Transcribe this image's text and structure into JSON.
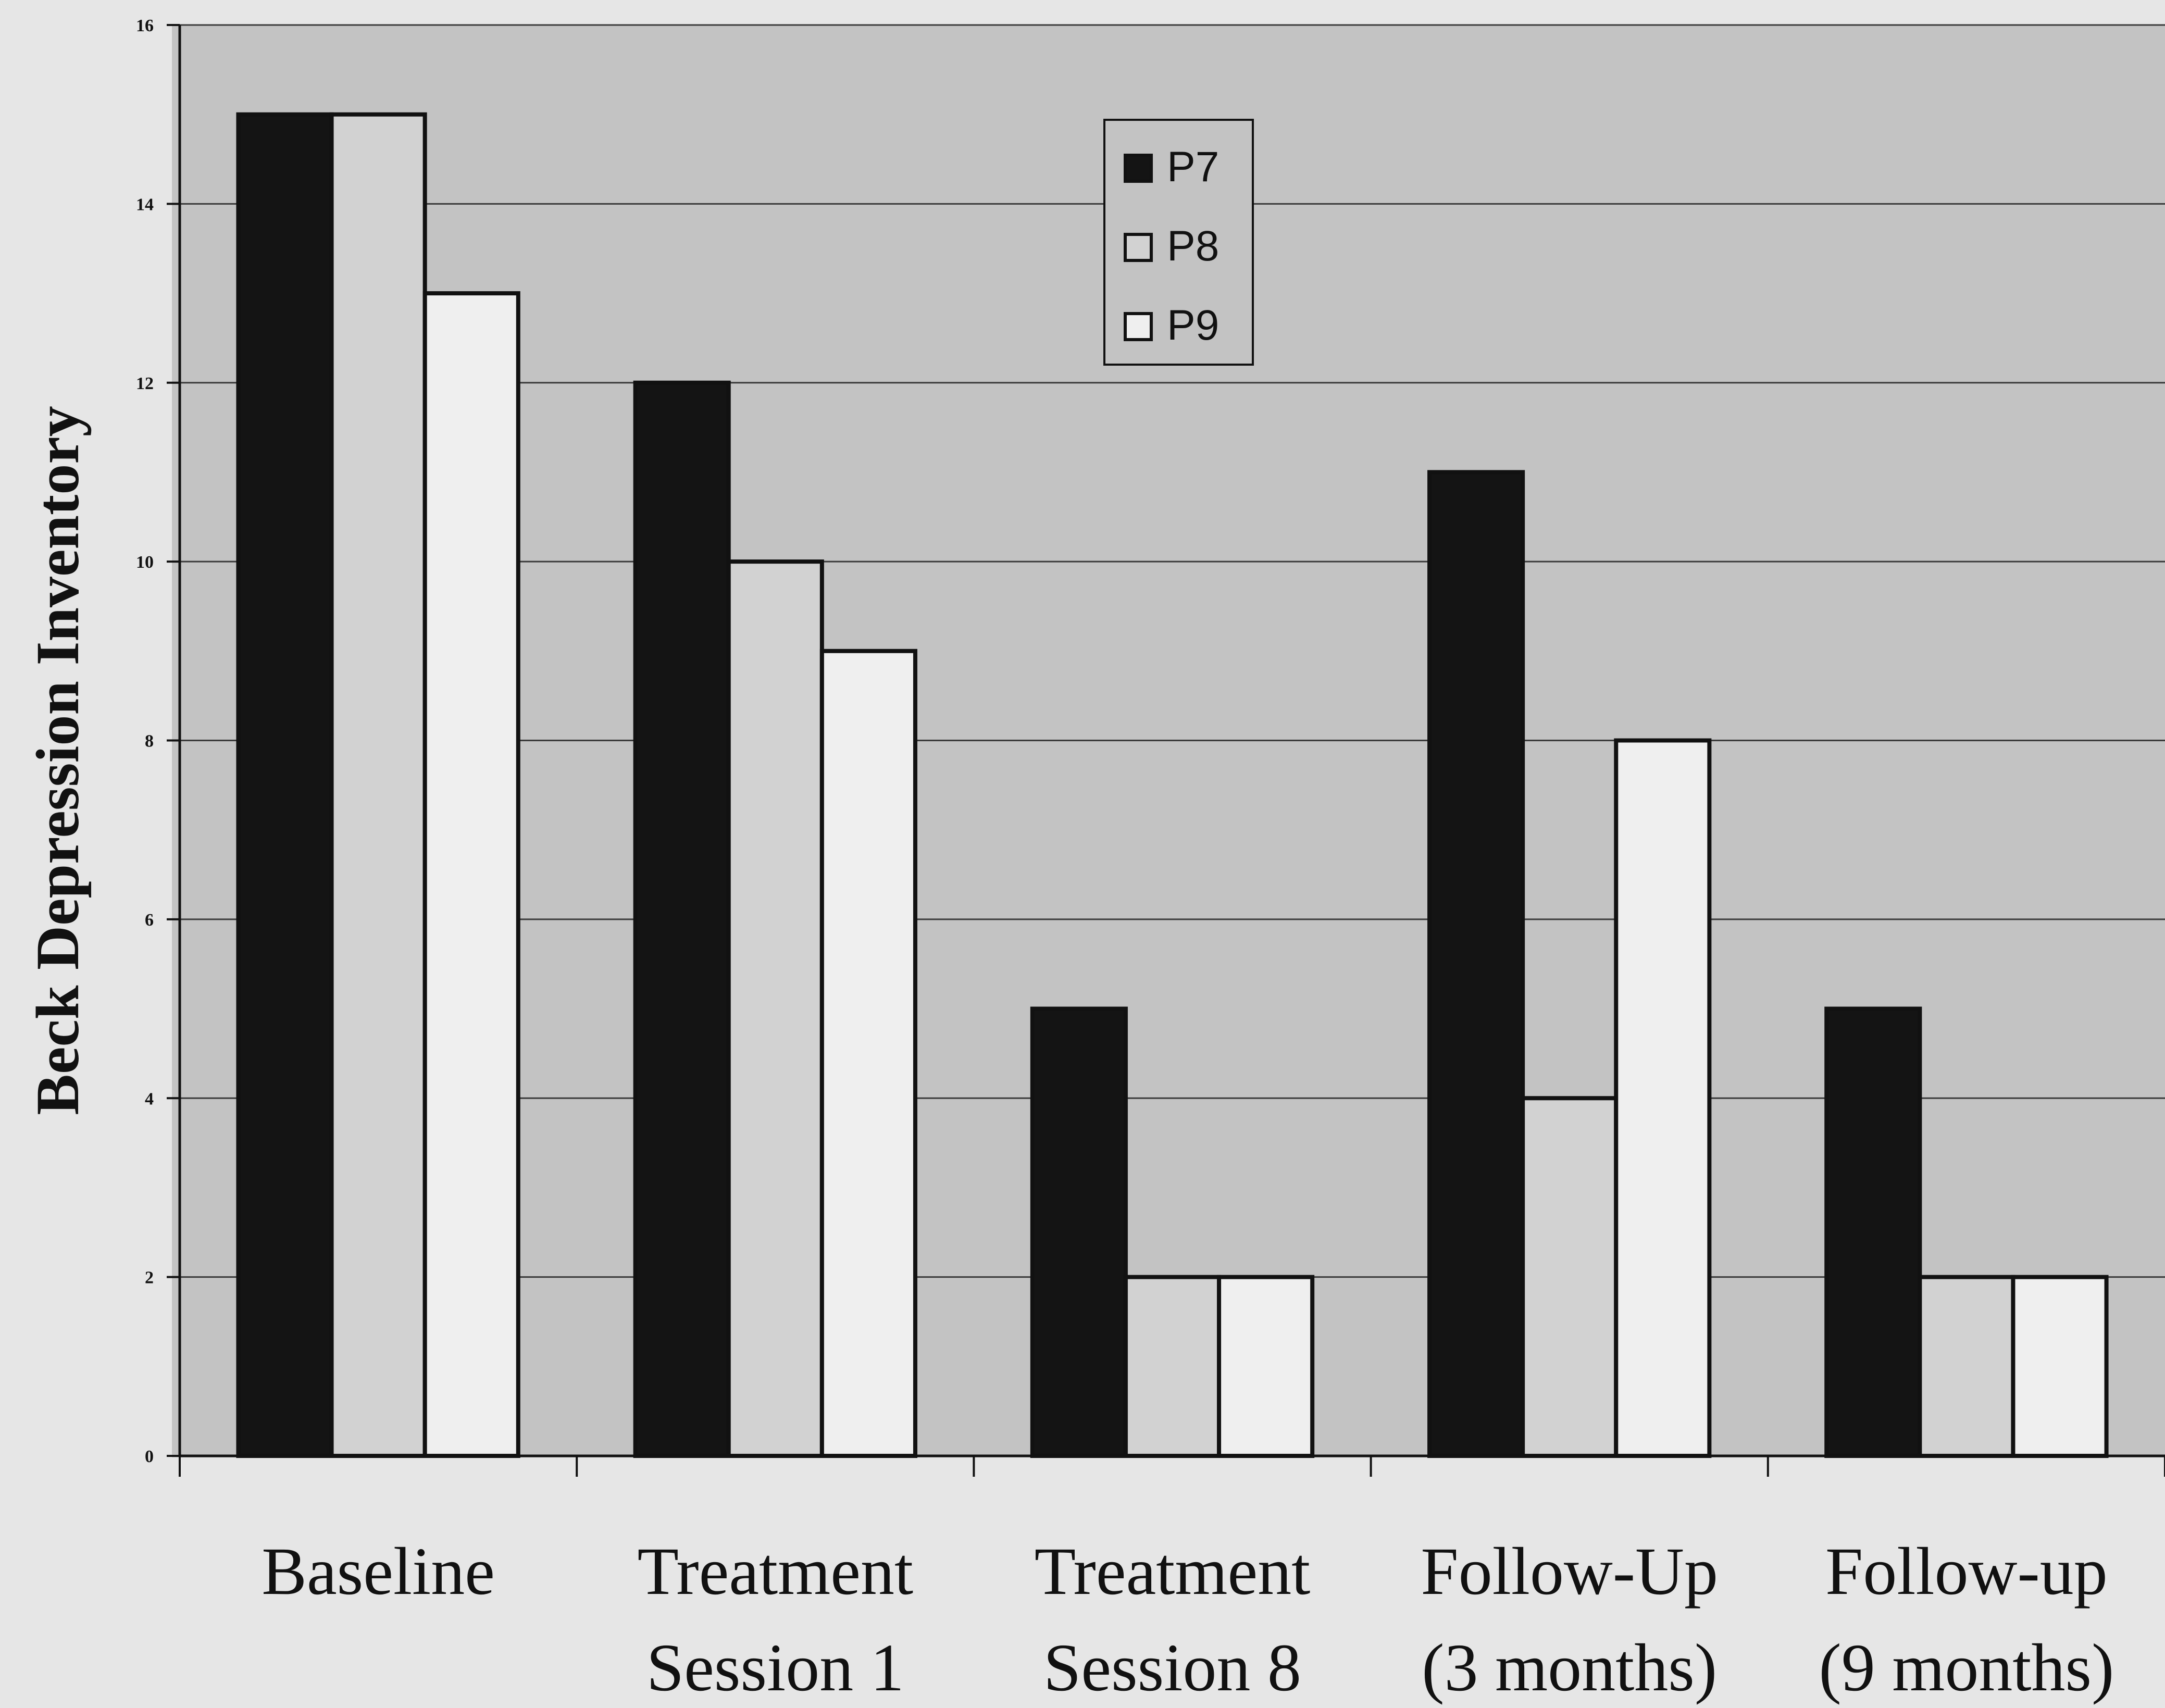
{
  "chart_data": {
    "type": "bar",
    "title": "",
    "xlabel": "",
    "ylabel": "Beck Depression Inventory",
    "ylim": [
      0,
      16
    ],
    "yticks": [
      "0",
      "2",
      "4",
      "6",
      "8",
      "10",
      "12",
      "14",
      "16"
    ],
    "grid": true,
    "legend_position": "top-center",
    "categories": [
      [
        "Baseline"
      ],
      [
        "Treatment",
        "Session 1"
      ],
      [
        "Treatment",
        "Session 8"
      ],
      [
        "Follow-Up",
        "(3 months)"
      ],
      [
        "Follow-up",
        "(9 months)"
      ]
    ],
    "series": [
      {
        "name": "P7",
        "color": "#141414",
        "values": [
          15,
          12,
          5,
          11,
          5
        ]
      },
      {
        "name": "P8",
        "color": "#d2d2d2",
        "values": [
          15,
          10,
          2,
          4,
          2
        ]
      },
      {
        "name": "P9",
        "color": "#efefef",
        "values": [
          13,
          9,
          2,
          8,
          2
        ]
      }
    ]
  }
}
